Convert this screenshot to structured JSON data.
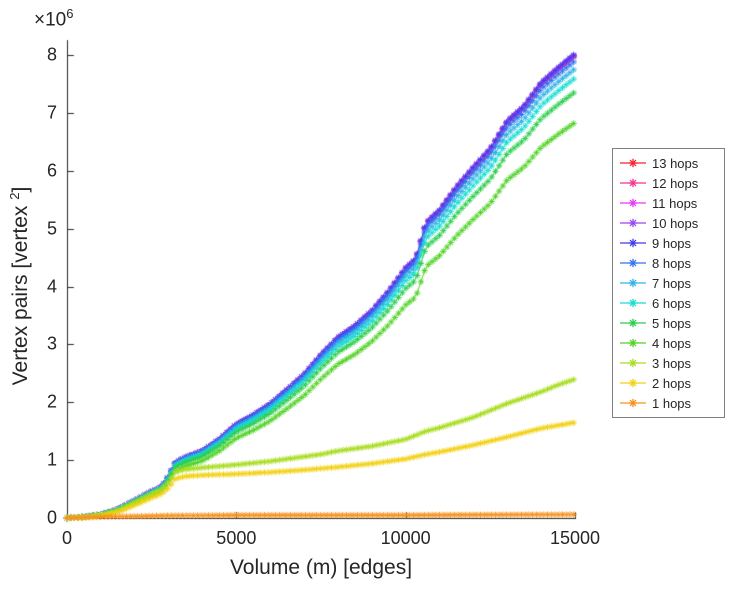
{
  "chart_data": {
    "type": "line",
    "title": "",
    "xlabel": "Volume (m) [edges]",
    "ylabel_parts": [
      "Vertex pairs [vertex ",
      "2",
      "]"
    ],
    "y_scale_base": "×10",
    "y_scale_exp": "6",
    "xlim": [
      0,
      15000
    ],
    "ylim_millions": [
      0,
      8
    ],
    "xticks": [
      0,
      5000,
      10000,
      15000
    ],
    "yticks_millions": [
      0,
      1,
      2,
      3,
      4,
      5,
      6,
      7,
      8
    ],
    "values_unit": "millions of vertex pairs (1e6)",
    "marker": "*",
    "marker_step_x": 110,
    "legend_position": "right-outside",
    "base_curve_millions": [
      [
        0,
        0
      ],
      [
        500,
        0.02
      ],
      [
        1000,
        0.06
      ],
      [
        1500,
        0.15
      ],
      [
        2000,
        0.3
      ],
      [
        2500,
        0.46
      ],
      [
        2800,
        0.54
      ],
      [
        3000,
        0.72
      ],
      [
        3200,
        0.96
      ],
      [
        3500,
        1.05
      ],
      [
        4000,
        1.16
      ],
      [
        4500,
        1.36
      ],
      [
        5000,
        1.62
      ],
      [
        5500,
        1.78
      ],
      [
        6000,
        1.97
      ],
      [
        6500,
        2.22
      ],
      [
        7000,
        2.48
      ],
      [
        7500,
        2.82
      ],
      [
        8000,
        3.12
      ],
      [
        8500,
        3.32
      ],
      [
        9000,
        3.58
      ],
      [
        9500,
        3.92
      ],
      [
        10000,
        4.32
      ],
      [
        10300,
        4.48
      ],
      [
        10600,
        5.1
      ],
      [
        11000,
        5.32
      ],
      [
        11500,
        5.72
      ],
      [
        12000,
        6.06
      ],
      [
        12500,
        6.38
      ],
      [
        13000,
        6.86
      ],
      [
        13500,
        7.12
      ],
      [
        14000,
        7.52
      ],
      [
        14500,
        7.78
      ],
      [
        15000,
        8.02
      ]
    ],
    "series": [
      {
        "name": "13 hops",
        "color": "#f3262d",
        "base_scale": 0.996
      },
      {
        "name": "12 hops",
        "color": "#f8338f",
        "base_scale": 0.997
      },
      {
        "name": "11 hops",
        "color": "#e23cf0",
        "base_scale": 0.998
      },
      {
        "name": "10 hops",
        "color": "#9b45f2",
        "base_scale": 0.999
      },
      {
        "name": "9 hops",
        "color": "#4638ee",
        "base_scale": 1.0
      },
      {
        "name": "8 hops",
        "color": "#2d74f0",
        "base_scale": 0.985
      },
      {
        "name": "7 hops",
        "color": "#2eb4e6",
        "base_scale": 0.968
      },
      {
        "name": "6 hops",
        "color": "#15ddd2",
        "base_scale": 0.948
      },
      {
        "name": "5 hops",
        "color": "#2ccd4e",
        "base_scale": 0.918
      },
      {
        "name": "4 hops",
        "color": "#51d228",
        "base_scale": 0.852
      },
      {
        "name": "3 hops",
        "color": "#a8dd20",
        "points": [
          [
            0,
            0
          ],
          [
            500,
            0.02
          ],
          [
            1000,
            0.05
          ],
          [
            1500,
            0.13
          ],
          [
            2000,
            0.27
          ],
          [
            2500,
            0.42
          ],
          [
            2800,
            0.5
          ],
          [
            3000,
            0.62
          ],
          [
            3200,
            0.8
          ],
          [
            3500,
            0.84
          ],
          [
            4000,
            0.87
          ],
          [
            5000,
            0.92
          ],
          [
            6000,
            0.98
          ],
          [
            7000,
            1.06
          ],
          [
            7500,
            1.1
          ],
          [
            8000,
            1.16
          ],
          [
            9000,
            1.24
          ],
          [
            10000,
            1.36
          ],
          [
            10600,
            1.5
          ],
          [
            11000,
            1.56
          ],
          [
            12000,
            1.74
          ],
          [
            13000,
            1.98
          ],
          [
            14000,
            2.18
          ],
          [
            14500,
            2.3
          ],
          [
            15000,
            2.4
          ]
        ]
      },
      {
        "name": "2 hops",
        "color": "#f2d114",
        "points": [
          [
            0,
            0
          ],
          [
            500,
            0.01
          ],
          [
            1000,
            0.04
          ],
          [
            1500,
            0.1
          ],
          [
            2000,
            0.22
          ],
          [
            2500,
            0.35
          ],
          [
            2800,
            0.42
          ],
          [
            3000,
            0.52
          ],
          [
            3200,
            0.68
          ],
          [
            3500,
            0.72
          ],
          [
            4000,
            0.74
          ],
          [
            5000,
            0.76
          ],
          [
            6000,
            0.79
          ],
          [
            7000,
            0.83
          ],
          [
            8000,
            0.88
          ],
          [
            9000,
            0.94
          ],
          [
            10000,
            1.02
          ],
          [
            10600,
            1.1
          ],
          [
            11000,
            1.14
          ],
          [
            12000,
            1.26
          ],
          [
            13000,
            1.4
          ],
          [
            14000,
            1.55
          ],
          [
            15000,
            1.65
          ]
        ]
      },
      {
        "name": "1 hops",
        "color": "#f6921d",
        "points": [
          [
            0,
            0
          ],
          [
            1000,
            0.02
          ],
          [
            3000,
            0.04
          ],
          [
            5000,
            0.05
          ],
          [
            10000,
            0.05
          ],
          [
            15000,
            0.06
          ]
        ]
      }
    ]
  }
}
